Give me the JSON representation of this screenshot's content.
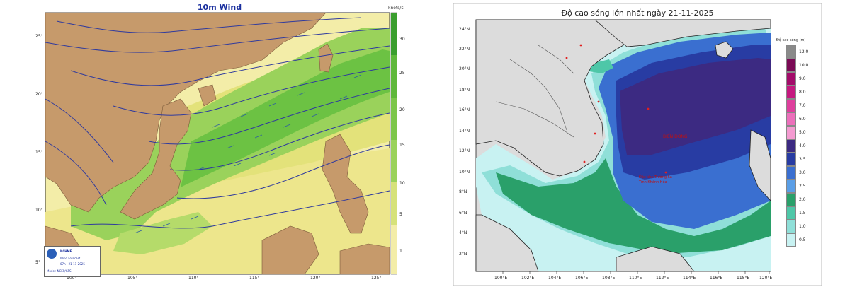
{
  "left_map": {
    "title": "10m Wind",
    "colorbar_unit": "knots/s",
    "colorbar_ticks": [
      "30",
      "25",
      "20",
      "15",
      "10",
      "5",
      "1"
    ],
    "lat_labels": [
      "25°",
      "20°",
      "15°",
      "10°",
      "5°"
    ],
    "lon_labels": [
      "100°",
      "105°",
      "110°",
      "115°",
      "120°",
      "125°"
    ],
    "logo_text": [
      "NCHMF",
      "Wind Forecast",
      "07h - 21-11-2025",
      "Model: NCEP/GFS"
    ],
    "colors": {
      "land": "#c69a6b",
      "sea_light": "#f3eda8",
      "sea_yellow": "#e6e27a",
      "sea_green": "#9ad25b",
      "sea_dark": "#5fb83b",
      "isobar": "#2f3a9e"
    }
  },
  "right_map": {
    "title": "Độ cao sóng lớn nhất ngày 21-11-2025",
    "legend_title": "Độ cao sóng (m)",
    "legend_values": [
      "12.0",
      "10.0",
      "9.0",
      "8.0",
      "7.0",
      "6.0",
      "5.0",
      "4.0",
      "3.5",
      "3.0",
      "2.5",
      "2.0",
      "1.5",
      "1.0",
      "0.5"
    ],
    "legend_colors": [
      "#8a8a8a",
      "#7a0a55",
      "#a30b6a",
      "#c5187f",
      "#de3f9d",
      "#ec6fbb",
      "#f49bd1",
      "#3c2a82",
      "#283ca3",
      "#3a6fd0",
      "#5a9ee6",
      "#2aa06a",
      "#4ec7a8",
      "#8fdfd8",
      "#c8f2f2"
    ],
    "lat_labels": [
      "24°N",
      "22°N",
      "20°N",
      "18°N",
      "16°N",
      "14°N",
      "12°N",
      "10°N",
      "8°N",
      "6°N",
      "4°N",
      "2°N"
    ],
    "lon_labels": [
      "100°E",
      "102°E",
      "104°E",
      "106°E",
      "108°E",
      "110°E",
      "112°E",
      "114°E",
      "116°E",
      "118°E",
      "120°E"
    ],
    "map_labels": [
      "BIỂN ĐÔNG",
      "Đặc khu Trường Sa",
      "Tỉnh Khánh Hòa"
    ],
    "colors": {
      "land": "#dcdcdc",
      "coast": "#222222",
      "border": "#555555"
    }
  }
}
